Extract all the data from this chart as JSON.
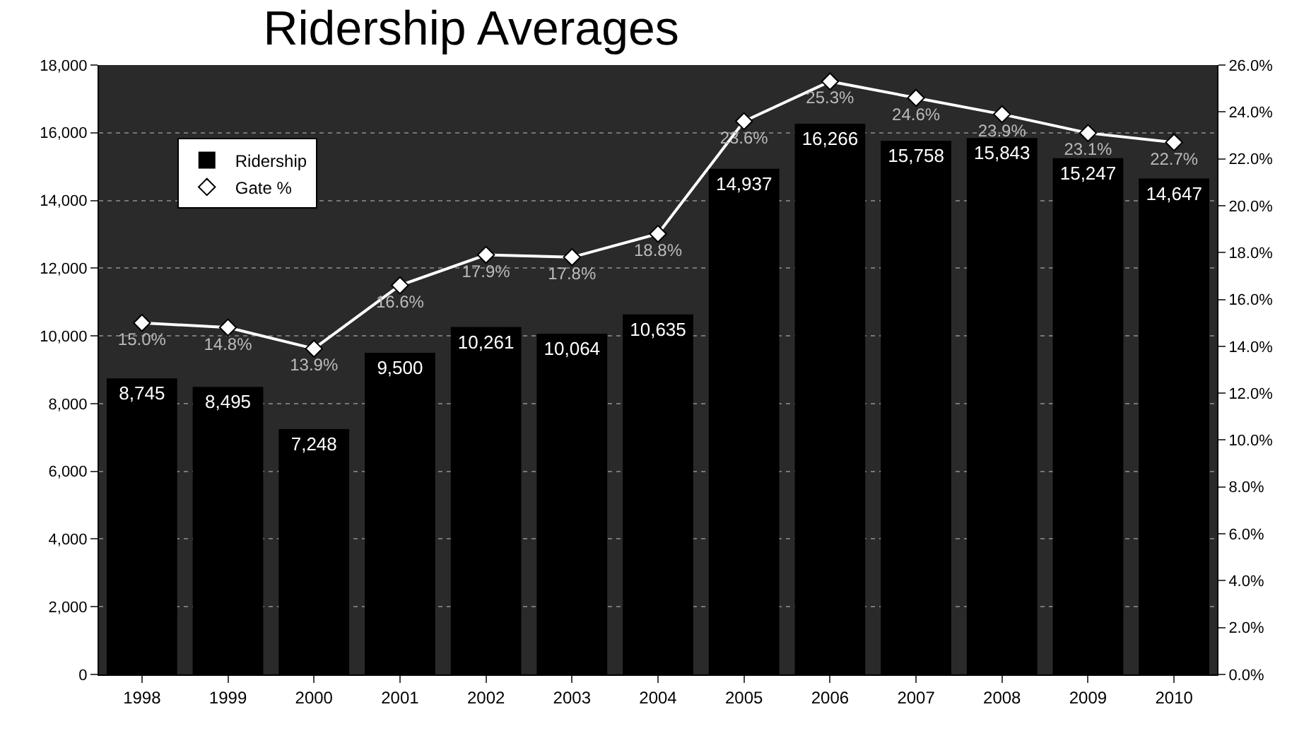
{
  "chart_data": {
    "type": "bar",
    "title": "Ridership Averages",
    "categories": [
      "1998",
      "1999",
      "2000",
      "2001",
      "2002",
      "2003",
      "2004",
      "2005",
      "2006",
      "2007",
      "2008",
      "2009",
      "2010"
    ],
    "series": [
      {
        "name": "Ridership",
        "color": "#000000",
        "values": [
          8745,
          8495,
          7248,
          9500,
          10261,
          10064,
          10635,
          14937,
          16266,
          15758,
          15843,
          15247,
          14647
        ],
        "value_labels": [
          "8,745",
          "8,495",
          "7,248",
          "9,500",
          "10,261",
          "10,064",
          "10,635",
          "14,937",
          "16,266",
          "15,758",
          "15,843",
          "15,247",
          "14,647"
        ]
      },
      {
        "name": "Gate %",
        "type": "line",
        "axis": "y2",
        "color": "#ffffff",
        "marker": "diamond",
        "values": [
          15.0,
          14.8,
          13.9,
          16.6,
          17.9,
          17.8,
          18.8,
          23.6,
          25.3,
          24.6,
          23.9,
          23.1,
          22.7
        ],
        "value_labels": [
          "15.0%",
          "14.8%",
          "13.9%",
          "16.6%",
          "17.9%",
          "17.8%",
          "18.8%",
          "23.6%",
          "25.3%",
          "24.6%",
          "23.9%",
          "23.1%",
          "22.7%"
        ]
      }
    ],
    "ylim": [
      0,
      18000
    ],
    "yticks": [
      {
        "value": 0,
        "label": "0"
      },
      {
        "value": 2000,
        "label": "2,000"
      },
      {
        "value": 4000,
        "label": "4,000"
      },
      {
        "value": 6000,
        "label": "6,000"
      },
      {
        "value": 8000,
        "label": "8,000"
      },
      {
        "value": 10000,
        "label": "10,000"
      },
      {
        "value": 12000,
        "label": "12,000"
      },
      {
        "value": 14000,
        "label": "14,000"
      },
      {
        "value": 16000,
        "label": "16,000"
      },
      {
        "value": 18000,
        "label": "18,000"
      }
    ],
    "y2lim": [
      0,
      26
    ],
    "y2ticks": [
      {
        "value": 0,
        "label": "0.0%"
      },
      {
        "value": 2,
        "label": "2.0%"
      },
      {
        "value": 4,
        "label": "4.0%"
      },
      {
        "value": 6,
        "label": "6.0%"
      },
      {
        "value": 8,
        "label": "8.0%"
      },
      {
        "value": 10,
        "label": "10.0%"
      },
      {
        "value": 12,
        "label": "12.0%"
      },
      {
        "value": 14,
        "label": "14.0%"
      },
      {
        "value": 16,
        "label": "16.0%"
      },
      {
        "value": 18,
        "label": "18.0%"
      },
      {
        "value": 20,
        "label": "20.0%"
      },
      {
        "value": 22,
        "label": "22.0%"
      },
      {
        "value": 24,
        "label": "24.0%"
      },
      {
        "value": 26,
        "label": "26.0%"
      }
    ],
    "grid": "y",
    "legend": "top left",
    "line_style": "solid"
  }
}
